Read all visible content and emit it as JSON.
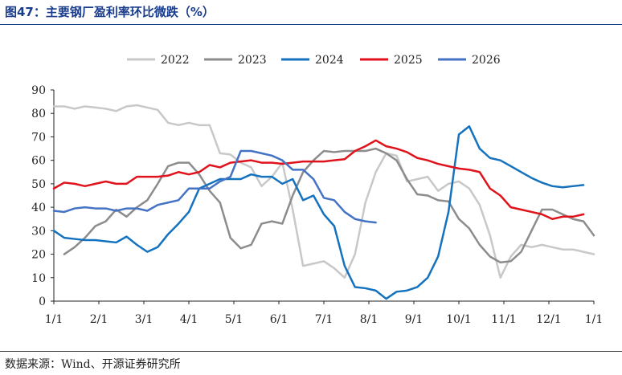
{
  "figure": {
    "title": "图47：主要钢厂盈利率环比微跌（%）",
    "source": "数据来源：Wind、开源证券研究所"
  },
  "chart_data": {
    "type": "line",
    "title": "图47：主要钢厂盈利率环比微跌（%）",
    "xlabel": "",
    "ylabel": "",
    "ylim": [
      0,
      90
    ],
    "yticks": [
      "0",
      "10",
      "20",
      "30",
      "40",
      "50",
      "60",
      "70",
      "80",
      "90"
    ],
    "xticks": [
      "1/1",
      "2/1",
      "3/1",
      "4/1",
      "5/1",
      "6/1",
      "7/1",
      "8/1",
      "9/1",
      "10/1",
      "11/1",
      "12/1",
      "1/1"
    ],
    "xunit": "week of year (0 = 1/1, 52 = next 1/1)",
    "grid": false,
    "legend": "top",
    "series": [
      {
        "name": "2022",
        "color": "#c8c8c8",
        "x": [
          0,
          1,
          2,
          3,
          4,
          5,
          6,
          7,
          8,
          9,
          10,
          11,
          12,
          13,
          14,
          15,
          16,
          17,
          18,
          19,
          20,
          21,
          22,
          23,
          24,
          25,
          26,
          27,
          28,
          29,
          30,
          31,
          32,
          33,
          34,
          35,
          36,
          37,
          38,
          39,
          40,
          41,
          42,
          43,
          44,
          45,
          46,
          47,
          48,
          49,
          50,
          51,
          52
        ],
        "values": [
          83,
          83,
          82,
          83,
          82.5,
          82,
          81,
          83,
          83.5,
          82.5,
          81.5,
          76,
          75,
          76,
          75,
          75,
          63,
          62.5,
          59,
          57,
          49,
          53,
          59,
          39,
          15,
          16,
          17,
          14,
          10,
          20,
          42,
          55,
          63,
          62,
          51,
          52,
          53,
          47,
          50,
          51,
          48,
          41,
          28,
          10,
          19,
          24,
          23,
          24,
          23,
          22,
          22,
          21,
          20
        ]
      },
      {
        "name": "2023",
        "color": "#8c8c8c",
        "x": [
          1,
          2,
          3,
          4,
          5,
          6,
          7,
          8,
          9,
          10,
          11,
          12,
          13,
          14,
          15,
          16,
          17,
          18,
          19,
          20,
          21,
          22,
          23,
          24,
          25,
          26,
          27,
          28,
          29,
          30,
          31,
          32,
          33,
          34,
          35,
          36,
          37,
          38,
          39,
          40,
          41,
          42,
          43,
          44,
          45,
          46,
          47,
          48,
          49,
          50,
          51,
          52
        ],
        "values": [
          20,
          23,
          27,
          32,
          34,
          39,
          36,
          40,
          43,
          50,
          57.5,
          59,
          59,
          54,
          47,
          42,
          27,
          22.5,
          24,
          33,
          34,
          33,
          45,
          55,
          60,
          64,
          63.5,
          64,
          64,
          64,
          65,
          63,
          60,
          52,
          45.5,
          45,
          43,
          42.5,
          35,
          31,
          24,
          19,
          16.5,
          17,
          21,
          30,
          39,
          39,
          37,
          35,
          34,
          28
        ]
      },
      {
        "name": "2024",
        "color": "#1472be",
        "x": [
          0,
          1,
          2,
          3,
          4,
          5,
          6,
          7,
          8,
          9,
          10,
          11,
          12,
          13,
          14,
          15,
          16,
          17,
          18,
          19,
          20,
          21,
          22,
          23,
          24,
          25,
          26,
          27,
          28,
          29,
          30,
          31,
          32,
          33,
          34,
          35,
          36,
          37,
          38,
          39,
          40,
          41,
          42,
          43,
          44,
          45,
          46,
          47,
          48,
          49,
          50,
          51,
          52
        ],
        "values": [
          30,
          27,
          26.5,
          26,
          26,
          25.5,
          25,
          27.5,
          24,
          21,
          23,
          28.5,
          33,
          38,
          48,
          50,
          52,
          52,
          52,
          54,
          53,
          53,
          50,
          52,
          43,
          45,
          37,
          32,
          15,
          6,
          5.5,
          4.5,
          1,
          4,
          4.5,
          6,
          10,
          19,
          38,
          71,
          74.5,
          65,
          61,
          60,
          57.5,
          55,
          52.5,
          50.5,
          49,
          48.5,
          49,
          49.5,
          null
        ]
      },
      {
        "name": "2025",
        "color": "#e0121c",
        "x": [
          0,
          1,
          2,
          3,
          4,
          5,
          6,
          7,
          8,
          9,
          10,
          11,
          12,
          13,
          14,
          15,
          16,
          17,
          18,
          19,
          20,
          21,
          22,
          23,
          24,
          25,
          26,
          27,
          28,
          29,
          30,
          31,
          32,
          33,
          34,
          35,
          36,
          37,
          38,
          39,
          40,
          41,
          42,
          43,
          44,
          45,
          46,
          47,
          48,
          49,
          50,
          51,
          52
        ],
        "values": [
          48,
          50.5,
          50,
          49,
          50,
          51,
          50,
          50,
          53,
          53,
          53,
          53.5,
          55,
          54,
          55,
          58,
          57,
          59,
          59.5,
          60,
          59,
          59,
          58.5,
          59,
          59.5,
          59.5,
          59.5,
          60,
          60.5,
          64,
          66,
          68.5,
          66,
          65,
          63.5,
          61,
          60,
          58.5,
          57.5,
          56.5,
          56,
          55,
          48,
          45,
          40,
          39,
          38,
          37,
          35,
          36,
          36,
          37,
          null
        ]
      },
      {
        "name": "2026",
        "color": "#4472c4",
        "x": [
          0,
          1,
          2,
          3,
          4,
          5,
          6,
          7,
          8,
          9,
          10,
          11,
          12,
          13,
          14,
          15,
          16,
          17,
          18,
          19,
          20,
          21,
          22,
          23,
          24,
          25,
          26,
          27,
          28,
          29,
          30,
          31,
          32,
          33,
          34,
          35,
          36,
          37,
          38,
          39,
          40,
          41,
          42,
          43,
          44,
          45,
          46,
          47,
          48,
          49,
          50,
          51,
          52
        ],
        "values": [
          38.5,
          38,
          39.5,
          40,
          39.5,
          39.5,
          38.5,
          39.5,
          39.5,
          38.5,
          41,
          42,
          43,
          48,
          48,
          48,
          51,
          53,
          64,
          64,
          63,
          62,
          60,
          56,
          56,
          52,
          44,
          43,
          38,
          35,
          34,
          33.5,
          null,
          null,
          null,
          null,
          null,
          null,
          null,
          null,
          null,
          null,
          null,
          null,
          null,
          null,
          null,
          null,
          null,
          null,
          null,
          null,
          null
        ]
      }
    ]
  }
}
